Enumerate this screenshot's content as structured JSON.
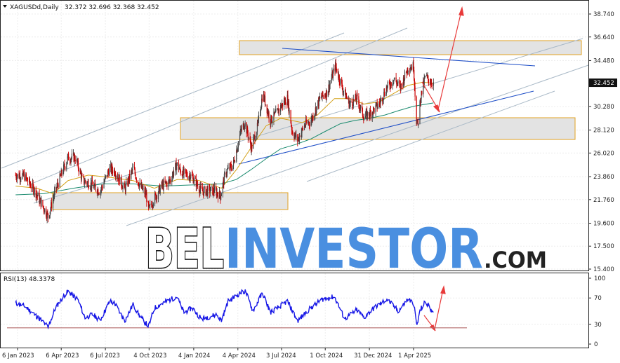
{
  "header": {
    "symbol": "XAGUSDd,Daily",
    "ohlc": "32.372 32.696 32.368 32.452"
  },
  "rsi_header": "RSI(13) 48.3378",
  "watermark": {
    "part1": "BEL",
    "part2": "INVESTOR",
    "part3": ".COM"
  },
  "colors": {
    "bull": "#444444",
    "bear": "#cc0000",
    "ma_fast": "#d4a017",
    "ma_slow": "#1a8a6e",
    "trend": "#1f4fc7",
    "channel": "#a9b9c7",
    "zone_fill": "#e3e3e3",
    "zone_border": "#e0a020",
    "arrow": "#e83a3a",
    "rsi_line": "#1616e6",
    "rsi_level": "#b46a6a",
    "wm_dark": "#222222",
    "wm_blue": "#4a8fe0"
  },
  "chart_data": [
    {
      "type": "candlestick",
      "title": "XAGUSDd,Daily",
      "last_price": "32.452",
      "y_ticks": [
        "38.740",
        "36.640",
        "34.480",
        "32.452",
        "30.280",
        "28.120",
        "26.020",
        "23.860",
        "21.760",
        "19.600",
        "17.500",
        "15.400"
      ],
      "y_tick_values": [
        38.74,
        36.64,
        34.48,
        32.452,
        30.28,
        28.12,
        26.02,
        23.86,
        21.76,
        19.6,
        17.5,
        15.4
      ],
      "ylim": [
        15.0,
        40.0
      ],
      "x_ticks": [
        "6 Jan 2023",
        "6 Apr 2023",
        "6 Jul 2023",
        "4 Oct 2023",
        "4 Jan 2024",
        "4 Apr 2024",
        "3 Jul 2024",
        "1 Oct 2024",
        "31 Dec 2024",
        "1 Apr 2025"
      ],
      "x_tick_dates": [
        "2023-01-06",
        "2023-04-06",
        "2023-07-06",
        "2023-10-04",
        "2024-01-04",
        "2024-04-04",
        "2024-07-03",
        "2024-10-01",
        "2024-12-31",
        "2025-04-01"
      ],
      "price_path": [
        [
          "2023-01-02",
          24.0
        ],
        [
          "2023-01-20",
          23.9
        ],
        [
          "2023-02-10",
          22.6
        ],
        [
          "2023-03-01",
          21.0
        ],
        [
          "2023-03-10",
          20.2
        ],
        [
          "2023-03-25",
          22.6
        ],
        [
          "2023-04-10",
          24.5
        ],
        [
          "2023-04-20",
          25.6
        ],
        [
          "2023-05-05",
          25.6
        ],
        [
          "2023-05-20",
          23.5
        ],
        [
          "2023-06-05",
          23.2
        ],
        [
          "2023-06-25",
          22.5
        ],
        [
          "2023-07-15",
          24.6
        ],
        [
          "2023-07-25",
          24.4
        ],
        [
          "2023-08-15",
          22.7
        ],
        [
          "2023-09-01",
          24.6
        ],
        [
          "2023-09-15",
          23.0
        ],
        [
          "2023-09-28",
          22.2
        ],
        [
          "2023-10-03",
          20.8
        ],
        [
          "2023-10-15",
          21.9
        ],
        [
          "2023-10-30",
          23.0
        ],
        [
          "2023-11-15",
          23.4
        ],
        [
          "2023-11-30",
          25.0
        ],
        [
          "2023-12-10",
          24.2
        ],
        [
          "2023-12-31",
          23.9
        ],
        [
          "2024-01-20",
          22.5
        ],
        [
          "2024-02-15",
          22.6
        ],
        [
          "2024-02-28",
          22.1
        ],
        [
          "2024-03-10",
          24.3
        ],
        [
          "2024-03-25",
          24.9
        ],
        [
          "2024-04-10",
          28.0
        ],
        [
          "2024-04-18",
          28.8
        ],
        [
          "2024-05-02",
          26.5
        ],
        [
          "2024-05-15",
          28.5
        ],
        [
          "2024-05-25",
          31.5
        ],
        [
          "2024-06-10",
          29.0
        ],
        [
          "2024-06-20",
          29.5
        ],
        [
          "2024-07-05",
          30.5
        ],
        [
          "2024-07-15",
          31.0
        ],
        [
          "2024-07-25",
          28.0
        ],
        [
          "2024-08-05",
          27.2
        ],
        [
          "2024-08-20",
          28.6
        ],
        [
          "2024-09-01",
          28.9
        ],
        [
          "2024-09-20",
          31.0
        ],
        [
          "2024-10-05",
          31.6
        ],
        [
          "2024-10-22",
          34.0
        ],
        [
          "2024-11-05",
          32.0
        ],
        [
          "2024-11-20",
          30.5
        ],
        [
          "2024-12-05",
          31.0
        ],
        [
          "2024-12-20",
          29.3
        ],
        [
          "2025-01-05",
          29.8
        ],
        [
          "2025-01-20",
          30.5
        ],
        [
          "2025-02-05",
          32.0
        ],
        [
          "2025-02-20",
          32.8
        ],
        [
          "2025-03-05",
          32.0
        ],
        [
          "2025-03-20",
          33.8
        ],
        [
          "2025-04-01",
          34.0
        ],
        [
          "2025-04-07",
          29.0
        ],
        [
          "2025-04-10",
          28.5
        ],
        [
          "2025-04-15",
          31.0
        ],
        [
          "2025-04-25",
          33.0
        ],
        [
          "2025-05-05",
          32.6
        ],
        [
          "2025-05-12",
          32.452
        ]
      ],
      "ma_fast_path": [
        [
          "2023-01-02",
          23.0
        ],
        [
          "2023-02-15",
          22.8
        ],
        [
          "2023-03-20",
          22.3
        ],
        [
          "2023-04-20",
          23.5
        ],
        [
          "2023-06-01",
          24.0
        ],
        [
          "2023-07-15",
          23.8
        ],
        [
          "2023-09-01",
          23.5
        ],
        [
          "2023-10-15",
          22.8
        ],
        [
          "2023-12-01",
          23.6
        ],
        [
          "2024-01-15",
          23.5
        ],
        [
          "2024-03-01",
          22.8
        ],
        [
          "2024-04-01",
          24.5
        ],
        [
          "2024-05-01",
          26.5
        ],
        [
          "2024-06-01",
          28.5
        ],
        [
          "2024-07-01",
          29.2
        ],
        [
          "2024-08-15",
          28.8
        ],
        [
          "2024-09-15",
          29.5
        ],
        [
          "2024-10-20",
          31.0
        ],
        [
          "2024-11-20",
          31.0
        ],
        [
          "2024-12-20",
          30.5
        ],
        [
          "2025-01-20",
          30.7
        ],
        [
          "2025-02-20",
          31.5
        ],
        [
          "2025-03-20",
          32.2
        ],
        [
          "2025-04-20",
          32.5
        ],
        [
          "2025-05-12",
          32.4
        ]
      ],
      "ma_slow_path": [
        [
          "2023-01-02",
          22.2
        ],
        [
          "2023-03-01",
          22.3
        ],
        [
          "2023-05-01",
          22.8
        ],
        [
          "2023-07-01",
          23.2
        ],
        [
          "2023-09-01",
          23.2
        ],
        [
          "2023-11-01",
          23.0
        ],
        [
          "2024-01-01",
          23.1
        ],
        [
          "2024-03-01",
          23.2
        ],
        [
          "2024-04-01",
          23.6
        ],
        [
          "2024-05-01",
          24.5
        ],
        [
          "2024-06-01",
          25.5
        ],
        [
          "2024-07-01",
          26.4
        ],
        [
          "2024-08-01",
          26.8
        ],
        [
          "2024-09-01",
          27.3
        ],
        [
          "2024-10-01",
          28.0
        ],
        [
          "2024-11-01",
          28.7
        ],
        [
          "2024-12-01",
          29.0
        ],
        [
          "2025-01-01",
          29.2
        ],
        [
          "2025-02-01",
          29.5
        ],
        [
          "2025-03-01",
          29.9
        ],
        [
          "2025-04-01",
          30.3
        ],
        [
          "2025-05-12",
          30.6
        ]
      ]
    },
    {
      "type": "line",
      "title": "RSI(13) 48.3378",
      "y_ticks": [
        "100",
        "70",
        "30",
        "0"
      ],
      "y_tick_values": [
        100,
        70,
        30,
        0
      ],
      "ylim": [
        0,
        100
      ],
      "levels": [
        30
      ],
      "rsi_path": [
        [
          "2023-01-02",
          62
        ],
        [
          "2023-01-20",
          58
        ],
        [
          "2023-02-10",
          45
        ],
        [
          "2023-03-05",
          30
        ],
        [
          "2023-03-10",
          25
        ],
        [
          "2023-03-25",
          55
        ],
        [
          "2023-04-10",
          72
        ],
        [
          "2023-04-20",
          80
        ],
        [
          "2023-05-10",
          68
        ],
        [
          "2023-05-25",
          40
        ],
        [
          "2023-06-10",
          45
        ],
        [
          "2023-06-25",
          36
        ],
        [
          "2023-07-15",
          65
        ],
        [
          "2023-07-25",
          62
        ],
        [
          "2023-08-15",
          35
        ],
        [
          "2023-09-01",
          60
        ],
        [
          "2023-09-15",
          42
        ],
        [
          "2023-10-03",
          27
        ],
        [
          "2023-10-15",
          55
        ],
        [
          "2023-11-01",
          62
        ],
        [
          "2023-11-30",
          72
        ],
        [
          "2023-12-15",
          48
        ],
        [
          "2024-01-01",
          55
        ],
        [
          "2024-01-20",
          38
        ],
        [
          "2024-02-20",
          45
        ],
        [
          "2024-03-01",
          36
        ],
        [
          "2024-03-15",
          65
        ],
        [
          "2024-04-10",
          78
        ],
        [
          "2024-04-20",
          80
        ],
        [
          "2024-05-05",
          50
        ],
        [
          "2024-05-25",
          78
        ],
        [
          "2024-06-10",
          48
        ],
        [
          "2024-07-15",
          65
        ],
        [
          "2024-08-05",
          35
        ],
        [
          "2024-09-01",
          55
        ],
        [
          "2024-09-25",
          68
        ],
        [
          "2024-10-20",
          72
        ],
        [
          "2024-11-10",
          38
        ],
        [
          "2024-12-05",
          52
        ],
        [
          "2024-12-20",
          40
        ],
        [
          "2025-01-10",
          55
        ],
        [
          "2025-02-05",
          68
        ],
        [
          "2025-03-01",
          50
        ],
        [
          "2025-03-20",
          68
        ],
        [
          "2025-04-01",
          62
        ],
        [
          "2025-04-08",
          28
        ],
        [
          "2025-04-15",
          52
        ],
        [
          "2025-04-25",
          64
        ],
        [
          "2025-05-12",
          48.34
        ]
      ]
    }
  ]
}
